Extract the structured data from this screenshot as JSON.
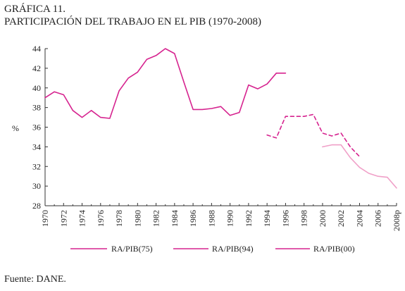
{
  "title": {
    "line1": "GRÁFICA 11.",
    "line2": "PARTICIPACIÓN DEL TRABAJO EN EL PIB (1970-2008)"
  },
  "source": "Fuente: DANE.",
  "colors": {
    "series_75": "#d6238f",
    "series_94": "#d6238f",
    "series_00": "#f0a0c8",
    "axis": "#333333"
  },
  "chart_data": {
    "type": "line",
    "ylabel": "%",
    "xlabel": "",
    "ylim": [
      28,
      44
    ],
    "yticks": [
      28,
      30,
      32,
      34,
      36,
      38,
      40,
      42,
      44
    ],
    "xlim": [
      1970,
      2008
    ],
    "xtick_values": [
      1970,
      1972,
      1974,
      1976,
      1978,
      1980,
      1982,
      1984,
      1986,
      1988,
      1990,
      1992,
      1994,
      1996,
      1998,
      2000,
      2002,
      2004,
      2006,
      2008
    ],
    "xtick_labels": [
      "1970",
      "1972",
      "1974",
      "1976",
      "1978",
      "1980",
      "1982",
      "1984",
      "1986",
      "1988",
      "1990",
      "1992",
      "1994",
      "1996",
      "1998",
      "2000",
      "2002",
      "2004",
      "2006",
      "2008p"
    ],
    "grid": false,
    "legend_position": "bottom",
    "series": [
      {
        "name": "RA/PIB(75)",
        "style": "solid",
        "x": [
          1970,
          1971,
          1972,
          1973,
          1974,
          1975,
          1976,
          1977,
          1978,
          1979,
          1980,
          1981,
          1982,
          1983,
          1984,
          1985,
          1986,
          1987,
          1988,
          1989,
          1990,
          1991,
          1992,
          1993,
          1994,
          1995,
          1996
        ],
        "y": [
          39.0,
          39.6,
          39.3,
          37.7,
          37.0,
          37.7,
          37.0,
          36.9,
          39.7,
          41.0,
          41.6,
          42.9,
          43.3,
          44.0,
          43.5,
          40.6,
          37.8,
          37.8,
          37.9,
          38.1,
          37.2,
          37.5,
          40.3,
          39.9,
          40.4,
          41.5,
          41.5
        ]
      },
      {
        "name": "RA/PIB(94)",
        "style": "dashed",
        "x": [
          1994,
          1995,
          1996,
          1997,
          1998,
          1999,
          2000,
          2001,
          2002,
          2003,
          2004
        ],
        "y": [
          35.2,
          34.9,
          37.1,
          37.1,
          37.1,
          37.3,
          35.4,
          35.1,
          35.4,
          34.0,
          33.0
        ]
      },
      {
        "name": "RA/PIB(00)",
        "style": "solid",
        "x": [
          2000,
          2001,
          2002,
          2003,
          2004,
          2005,
          2006,
          2007,
          2008
        ],
        "y": [
          34.0,
          34.2,
          34.2,
          32.9,
          31.9,
          31.3,
          31.0,
          30.9,
          29.8
        ]
      }
    ]
  }
}
